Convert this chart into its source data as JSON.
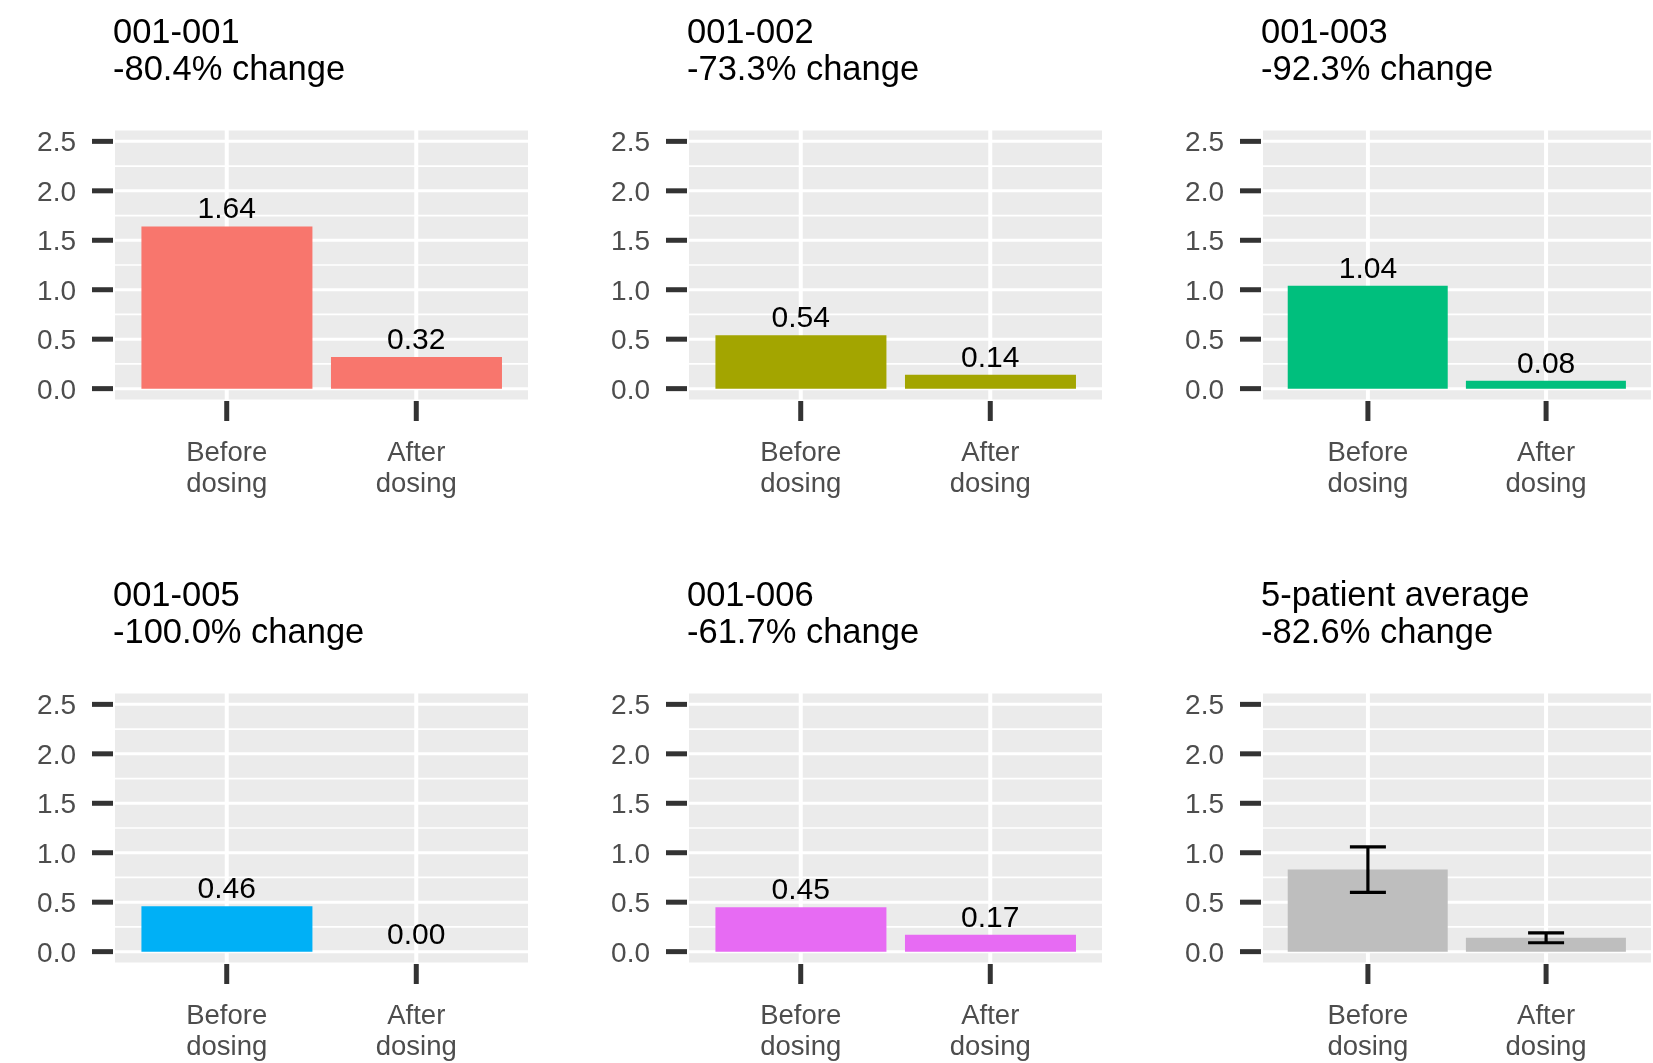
{
  "chart_data": [
    {
      "type": "bar",
      "title": "001-001",
      "subtitle": "-80.4% change",
      "categories": [
        "Before dosing",
        "After dosing"
      ],
      "values": [
        1.64,
        0.32
      ],
      "value_labels": [
        "1.64",
        "0.32"
      ],
      "color": "#f8766d",
      "ylim": [
        -0.125,
        2.625
      ],
      "yticks": [
        {
          "value": 0,
          "label": "0.0"
        },
        0.5,
        {
          "value": 1,
          "label": "1.0"
        },
        1.5,
        {
          "value": 2,
          "label": "2.0"
        },
        2.5
      ],
      "grid": true
    },
    {
      "type": "bar",
      "title": "001-002",
      "subtitle": "-73.3% change",
      "categories": [
        "Before dosing",
        "After dosing"
      ],
      "values": [
        0.54,
        0.14
      ],
      "value_labels": [
        "0.54",
        "0.14"
      ],
      "color": "#a3a500",
      "ylim": [
        -0.125,
        2.625
      ],
      "yticks": [
        {
          "value": 0,
          "label": "0.0"
        },
        0.5,
        {
          "value": 1,
          "label": "1.0"
        },
        1.5,
        {
          "value": 2,
          "label": "2.0"
        },
        2.5
      ],
      "grid": true
    },
    {
      "type": "bar",
      "title": "001-003",
      "subtitle": "-92.3% change",
      "categories": [
        "Before dosing",
        "After dosing"
      ],
      "values": [
        1.04,
        0.08
      ],
      "value_labels": [
        "1.04",
        "0.08"
      ],
      "color": "#00bf7d",
      "ylim": [
        -0.125,
        2.625
      ],
      "yticks": [
        {
          "value": 0,
          "label": "0.0"
        },
        0.5,
        {
          "value": 1,
          "label": "1.0"
        },
        1.5,
        {
          "value": 2,
          "label": "2.0"
        },
        2.5
      ],
      "grid": true
    },
    {
      "type": "bar",
      "title": "001-005",
      "subtitle": "-100.0% change",
      "categories": [
        "Before dosing",
        "After dosing"
      ],
      "values": [
        0.46,
        0
      ],
      "value_labels": [
        "0.46",
        "0.00"
      ],
      "color": "#00b0f6",
      "ylim": [
        -0.125,
        2.625
      ],
      "yticks": [
        {
          "value": 0,
          "label": "0.0"
        },
        0.5,
        {
          "value": 1,
          "label": "1.0"
        },
        1.5,
        {
          "value": 2,
          "label": "2.0"
        },
        2.5
      ],
      "grid": true
    },
    {
      "type": "bar",
      "title": "001-006",
      "subtitle": "-61.7% change",
      "categories": [
        "Before dosing",
        "After dosing"
      ],
      "values": [
        0.45,
        0.17
      ],
      "value_labels": [
        "0.45",
        "0.17"
      ],
      "color": "#e76bf3",
      "ylim": [
        -0.125,
        2.625
      ],
      "yticks": [
        {
          "value": 0,
          "label": "0.0"
        },
        0.5,
        {
          "value": 1,
          "label": "1.0"
        },
        1.5,
        {
          "value": 2,
          "label": "2.0"
        },
        2.5
      ],
      "grid": true
    },
    {
      "type": "bar",
      "title": "5-patient average",
      "subtitle": "-82.6% change",
      "categories": [
        "Before dosing",
        "After dosing"
      ],
      "values": [
        0.83,
        0.14
      ],
      "errors": [
        0.23,
        0.05
      ],
      "color": "#bebebe",
      "ylim": [
        -0.125,
        2.625
      ],
      "yticks": [
        {
          "value": 0,
          "label": "0.0"
        },
        0.5,
        {
          "value": 1,
          "label": "1.0"
        },
        1.5,
        {
          "value": 2,
          "label": "2.0"
        },
        2.5
      ],
      "grid": true
    }
  ]
}
